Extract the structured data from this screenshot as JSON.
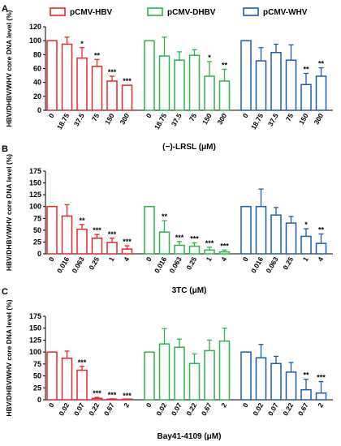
{
  "legend": [
    {
      "name": "pCMV-HBV",
      "color": "#e8262c"
    },
    {
      "name": "pCMV-DHBV",
      "color": "#2fb34a"
    },
    {
      "name": "pCMV-WHV",
      "color": "#1c5ea8"
    }
  ],
  "chart_data": [
    {
      "panel": "A",
      "type": "bar",
      "ylabel": "HBV/DHBV/WHV core DNA level (%)",
      "xlabel": "(−)-LRSL (μM)",
      "ylim": [
        0,
        120
      ],
      "yticks": [
        0,
        20,
        40,
        60,
        80,
        100,
        120
      ],
      "grid": false,
      "legend_position": "top",
      "categories": [
        "0",
        "18.75",
        "37.5",
        "75",
        "150",
        "300"
      ],
      "series": [
        {
          "name": "pCMV-HBV",
          "values": [
            100,
            95,
            75,
            63,
            42,
            36
          ],
          "errors": [
            0,
            10,
            15,
            10,
            7,
            0
          ],
          "significance": [
            "",
            "",
            "*",
            "**",
            "***",
            "***"
          ]
        },
        {
          "name": "pCMV-DHBV",
          "values": [
            100,
            78,
            72,
            79,
            49,
            42
          ],
          "errors": [
            0,
            27,
            12,
            8,
            21,
            17
          ],
          "significance": [
            "",
            "",
            "",
            "",
            "*",
            "**"
          ]
        },
        {
          "name": "pCMV-WHV",
          "values": [
            100,
            71,
            83,
            72,
            37,
            49
          ],
          "errors": [
            0,
            19,
            12,
            22,
            16,
            12
          ],
          "significance": [
            "",
            "",
            "",
            "",
            "**",
            "**"
          ]
        }
      ]
    },
    {
      "panel": "B",
      "type": "bar",
      "ylabel": "HBV/DHBV/WHV core DNA level (%)",
      "xlabel": "3TC (μM)",
      "ylim": [
        0,
        175
      ],
      "yticks": [
        0,
        25,
        50,
        75,
        100,
        125,
        150,
        175
      ],
      "grid": false,
      "categories": [
        "0",
        "0.016",
        "0.063",
        "0.25",
        "1",
        "4"
      ],
      "series": [
        {
          "name": "pCMV-HBV",
          "values": [
            100,
            80,
            52,
            33,
            24,
            10
          ],
          "errors": [
            0,
            24,
            10,
            8,
            9,
            7
          ],
          "significance": [
            "",
            "",
            "**",
            "***",
            "***",
            "***"
          ]
        },
        {
          "name": "pCMV-DHBV",
          "values": [
            100,
            46,
            18,
            16,
            8,
            4
          ],
          "errors": [
            0,
            24,
            8,
            7,
            6,
            4
          ],
          "significance": [
            "",
            "**",
            "***",
            "***",
            "***",
            "***"
          ]
        },
        {
          "name": "pCMV-WHV",
          "values": [
            100,
            100,
            82,
            65,
            37,
            22
          ],
          "errors": [
            0,
            37,
            16,
            14,
            16,
            20
          ],
          "significance": [
            "",
            "",
            "",
            "",
            "*",
            "**"
          ]
        }
      ]
    },
    {
      "panel": "C",
      "type": "bar",
      "ylabel": "HBV/DHBV/WHV core DNA level (%)",
      "xlabel": "Bay41-4109 (μM)",
      "ylim": [
        0,
        175
      ],
      "yticks": [
        0,
        25,
        50,
        75,
        100,
        125,
        150,
        175
      ],
      "grid": false,
      "categories": [
        "0",
        "0.02",
        "0.07",
        "0.22",
        "0.67",
        "2"
      ],
      "series": [
        {
          "name": "pCMV-HBV",
          "values": [
            100,
            87,
            62,
            3,
            1,
            0
          ],
          "errors": [
            0,
            15,
            8,
            2,
            1,
            0
          ],
          "significance": [
            "",
            "",
            "***",
            "***",
            "***",
            "***"
          ]
        },
        {
          "name": "pCMV-DHBV",
          "values": [
            100,
            117,
            110,
            76,
            103,
            123
          ],
          "errors": [
            0,
            32,
            17,
            20,
            22,
            27
          ],
          "significance": [
            "",
            "",
            "",
            "",
            "",
            ""
          ]
        },
        {
          "name": "pCMV-WHV",
          "values": [
            100,
            88,
            76,
            58,
            21,
            14
          ],
          "errors": [
            0,
            28,
            15,
            20,
            22,
            24
          ],
          "significance": [
            "",
            "",
            "",
            "",
            "**",
            "***"
          ]
        }
      ]
    }
  ]
}
